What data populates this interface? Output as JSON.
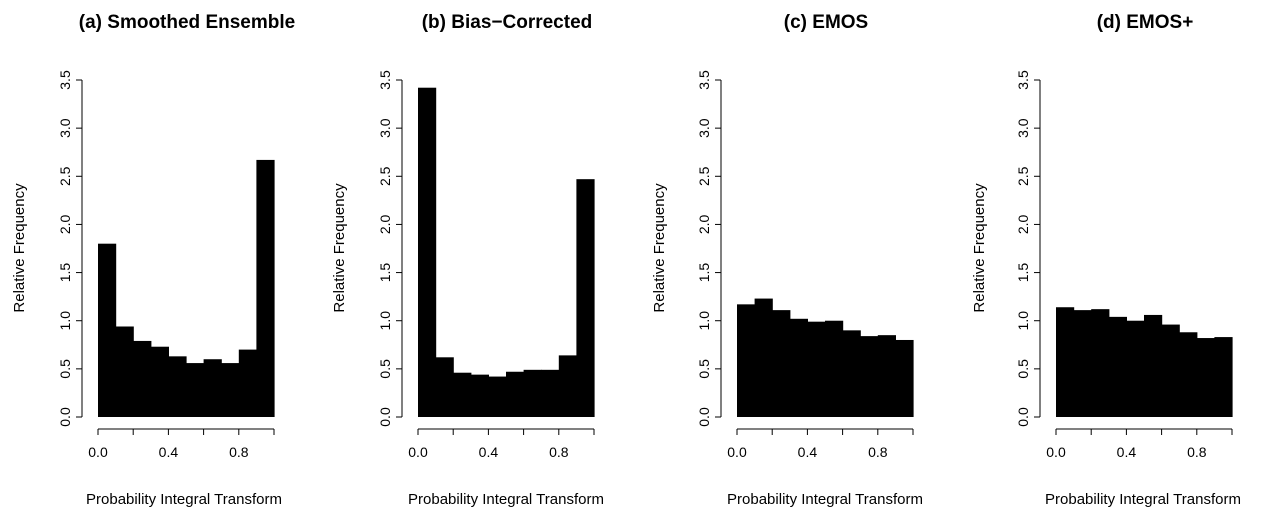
{
  "chart_data": [
    {
      "type": "bar",
      "title": "(a) Smoothed Ensemble",
      "xlabel": "Probability Integral Transform",
      "ylabel": "Relative Frequency",
      "xlim": [
        0,
        1
      ],
      "ylim": [
        0,
        3.5
      ],
      "x_ticks": [
        "0.0",
        "0.4",
        "0.8"
      ],
      "y_ticks": [
        "0.0",
        "0.5",
        "1.0",
        "1.5",
        "2.0",
        "2.5",
        "3.0",
        "3.5"
      ],
      "bin_edges": [
        0.0,
        0.1,
        0.2,
        0.3,
        0.4,
        0.5,
        0.6,
        0.7,
        0.8,
        0.9,
        1.0
      ],
      "values": [
        1.8,
        0.94,
        0.79,
        0.73,
        0.63,
        0.56,
        0.6,
        0.56,
        0.7,
        2.67
      ]
    },
    {
      "type": "bar",
      "title": "(b) Bias−Corrected",
      "xlabel": "Probability Integral Transform",
      "ylabel": "Relative Frequency",
      "xlim": [
        0,
        1
      ],
      "ylim": [
        0,
        3.5
      ],
      "x_ticks": [
        "0.0",
        "0.4",
        "0.8"
      ],
      "y_ticks": [
        "0.0",
        "0.5",
        "1.0",
        "1.5",
        "2.0",
        "2.5",
        "3.0",
        "3.5"
      ],
      "bin_edges": [
        0.0,
        0.1,
        0.2,
        0.3,
        0.4,
        0.5,
        0.6,
        0.7,
        0.8,
        0.9,
        1.0
      ],
      "values": [
        3.42,
        0.62,
        0.46,
        0.44,
        0.42,
        0.47,
        0.49,
        0.49,
        0.64,
        2.47
      ]
    },
    {
      "type": "bar",
      "title": "(c) EMOS",
      "xlabel": "Probability Integral Transform",
      "ylabel": "Relative Frequency",
      "xlim": [
        0,
        1
      ],
      "ylim": [
        0,
        3.5
      ],
      "x_ticks": [
        "0.0",
        "0.4",
        "0.8"
      ],
      "y_ticks": [
        "0.0",
        "0.5",
        "1.0",
        "1.5",
        "2.0",
        "2.5",
        "3.0",
        "3.5"
      ],
      "bin_edges": [
        0.0,
        0.1,
        0.2,
        0.3,
        0.4,
        0.5,
        0.6,
        0.7,
        0.8,
        0.9,
        1.0
      ],
      "values": [
        1.17,
        1.23,
        1.11,
        1.02,
        0.99,
        1.0,
        0.9,
        0.84,
        0.85,
        0.8
      ]
    },
    {
      "type": "bar",
      "title": "(d) EMOS+",
      "xlabel": "Probability Integral Transform",
      "ylabel": "Relative Frequency",
      "xlim": [
        0,
        1
      ],
      "ylim": [
        0,
        3.5
      ],
      "x_ticks": [
        "0.0",
        "0.4",
        "0.8"
      ],
      "y_ticks": [
        "0.0",
        "0.5",
        "1.0",
        "1.5",
        "2.0",
        "2.5",
        "3.0",
        "3.5"
      ],
      "bin_edges": [
        0.0,
        0.1,
        0.2,
        0.3,
        0.4,
        0.5,
        0.6,
        0.7,
        0.8,
        0.9,
        1.0
      ],
      "values": [
        1.14,
        1.11,
        1.12,
        1.04,
        1.0,
        1.06,
        0.96,
        0.88,
        0.82,
        0.83
      ]
    }
  ]
}
